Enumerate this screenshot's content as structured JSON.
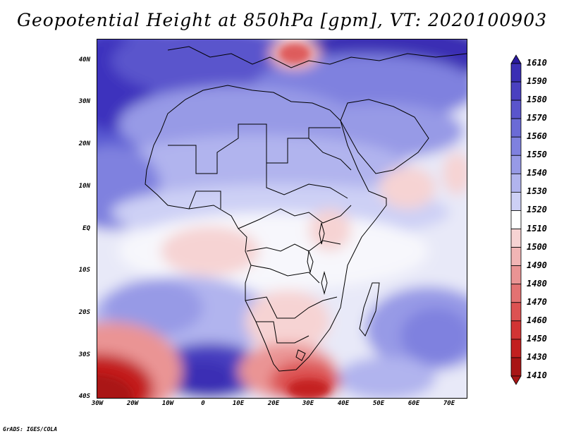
{
  "title": "Geopotential Height at 850hPa [gpm], VT: 2020100903",
  "footer": "GrADS: IGES/COLA",
  "lat_labels": [
    "40N",
    "30N",
    "20N",
    "10N",
    "EQ",
    "10S",
    "20S",
    "30S",
    "40S"
  ],
  "lon_labels": [
    "30W",
    "20W",
    "10W",
    "0",
    "10E",
    "20E",
    "30E",
    "40E",
    "50E",
    "60E",
    "70E"
  ],
  "colorbar": {
    "levels": [
      "1610",
      "1590",
      "1580",
      "1570",
      "1560",
      "1550",
      "1540",
      "1530",
      "1520",
      "1510",
      "1500",
      "1490",
      "1480",
      "1470",
      "1460",
      "1450",
      "1430",
      "1410"
    ],
    "colors": [
      "#2a1a9e",
      "#3b2fb4",
      "#4a40c0",
      "#5a55cc",
      "#6b6bd6",
      "#7f81df",
      "#979ae6",
      "#b1b4ee",
      "#cdd0f5",
      "#ffffff",
      "#f6d3d3",
      "#f1b5b5",
      "#ea9494",
      "#e37272",
      "#dc5252",
      "#d23434",
      "#c21f1f",
      "#a81515"
    ]
  },
  "map": {
    "lon_range": [
      -30,
      75
    ],
    "lat_range": [
      -40,
      45
    ],
    "colors": {
      "ocean_base": "#e6e8f8",
      "land_line": "#000000"
    }
  }
}
